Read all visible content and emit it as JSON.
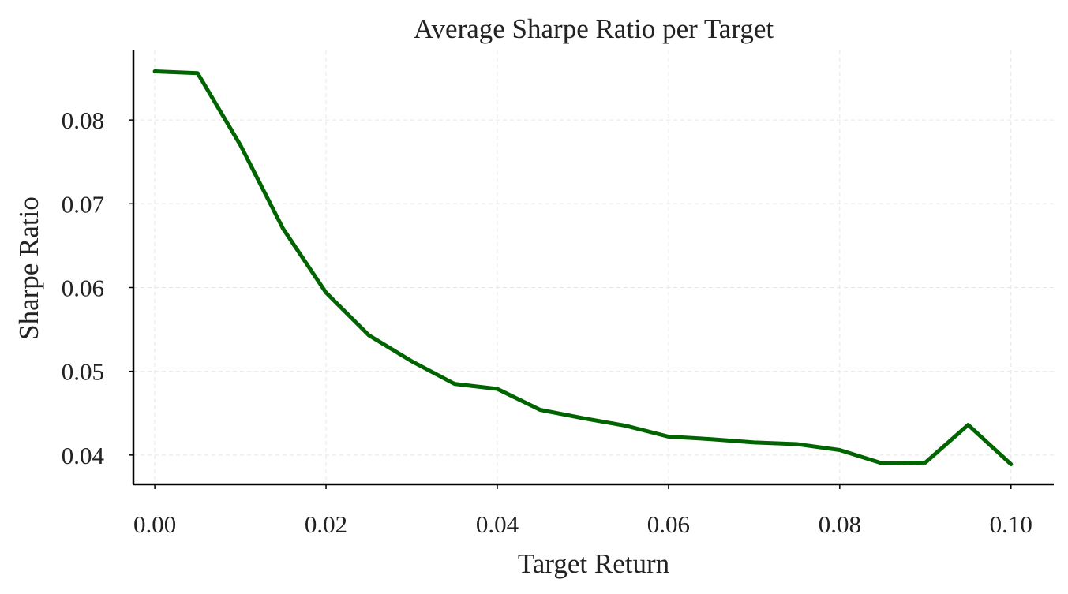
{
  "chart_data": {
    "type": "line",
    "title": "Average Sharpe Ratio per Target",
    "xlabel": "Target Return",
    "ylabel": "Sharpe Ratio",
    "xlim": [
      -0.0025,
      0.105
    ],
    "ylim": [
      0.0365,
      0.0883
    ],
    "xticks": [
      0.0,
      0.02,
      0.04,
      0.06,
      0.08,
      0.1
    ],
    "xtick_labels": [
      "0.00",
      "0.02",
      "0.04",
      "0.06",
      "0.08",
      "0.10"
    ],
    "yticks": [
      0.04,
      0.05,
      0.06,
      0.07,
      0.08
    ],
    "ytick_labels": [
      "0.04",
      "0.05",
      "0.06",
      "0.07",
      "0.08"
    ],
    "grid": true,
    "color": "#006400",
    "x": [
      0.0,
      0.005,
      0.01,
      0.015,
      0.02,
      0.025,
      0.03,
      0.035,
      0.04,
      0.045,
      0.05,
      0.055,
      0.06,
      0.065,
      0.07,
      0.075,
      0.08,
      0.085,
      0.09,
      0.095,
      0.1
    ],
    "y": [
      0.0858,
      0.0856,
      0.077,
      0.067,
      0.0594,
      0.0543,
      0.0512,
      0.0485,
      0.0479,
      0.0454,
      0.0444,
      0.0435,
      0.0422,
      0.0419,
      0.0415,
      0.0413,
      0.0406,
      0.039,
      0.0391,
      0.0436,
      0.0389
    ]
  }
}
